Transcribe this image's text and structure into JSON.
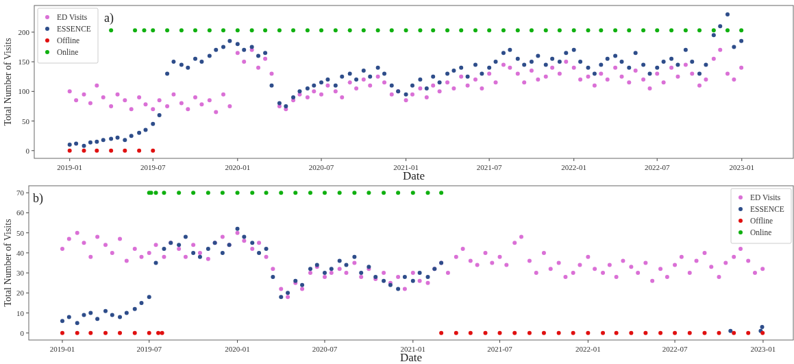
{
  "chart_data": [
    {
      "type": "scatter",
      "annotations": [
        "a)"
      ],
      "xlabel": "Date",
      "ylabel": "Total Number of Visits",
      "legend": "top left",
      "marker": "circle",
      "xlim": [
        "2018-10-16",
        "2023-04-23"
      ],
      "xticks": [
        "2019-01",
        "2019-07",
        "2020-01",
        "2020-07",
        "2021-01",
        "2021-07",
        "2022-01",
        "2022-07",
        "2023-01"
      ],
      "ylim": [
        -13,
        245
      ],
      "yticks": [
        0,
        50,
        100,
        150,
        200
      ],
      "x": [
        "2019-01-01",
        "2019-01-15",
        "2019-02-01",
        "2019-02-15",
        "2019-03-01",
        "2019-03-15",
        "2019-04-01",
        "2019-04-15",
        "2019-05-01",
        "2019-05-15",
        "2019-06-01",
        "2019-06-15",
        "2019-07-01",
        "2019-07-15",
        "2019-08-01",
        "2019-08-15",
        "2019-09-01",
        "2019-09-15",
        "2019-10-01",
        "2019-10-15",
        "2019-11-01",
        "2019-11-15",
        "2019-12-01",
        "2019-12-15",
        "2020-01-01",
        "2020-01-15",
        "2020-02-01",
        "2020-02-15",
        "2020-03-01",
        "2020-03-15",
        "2020-04-01",
        "2020-04-15",
        "2020-05-01",
        "2020-05-15",
        "2020-06-01",
        "2020-06-15",
        "2020-07-01",
        "2020-07-15",
        "2020-08-01",
        "2020-08-15",
        "2020-09-01",
        "2020-09-15",
        "2020-10-01",
        "2020-10-15",
        "2020-11-01",
        "2020-11-15",
        "2020-12-01",
        "2020-12-15",
        "2021-01-01",
        "2021-01-15",
        "2021-02-01",
        "2021-02-15",
        "2021-03-01",
        "2021-03-15",
        "2021-04-01",
        "2021-04-15",
        "2021-05-01",
        "2021-05-15",
        "2021-06-01",
        "2021-06-15",
        "2021-07-01",
        "2021-07-15",
        "2021-08-01",
        "2021-08-15",
        "2021-09-01",
        "2021-09-15",
        "2021-10-01",
        "2021-10-15",
        "2021-11-01",
        "2021-11-15",
        "2021-12-01",
        "2021-12-15",
        "2022-01-01",
        "2022-01-15",
        "2022-02-01",
        "2022-02-15",
        "2022-03-01",
        "2022-03-15",
        "2022-04-01",
        "2022-04-15",
        "2022-05-01",
        "2022-05-15",
        "2022-06-01",
        "2022-06-15",
        "2022-07-01",
        "2022-07-15",
        "2022-08-01",
        "2022-08-15",
        "2022-09-01",
        "2022-09-15",
        "2022-10-01",
        "2022-10-15",
        "2022-11-01",
        "2022-11-15",
        "2022-12-01",
        "2022-12-15",
        "2022-12-31"
      ],
      "series": [
        {
          "name": "ED Visits",
          "color": "#da70d6",
          "values": [
            100,
            85,
            95,
            80,
            110,
            90,
            75,
            95,
            85,
            70,
            90,
            78,
            70,
            85,
            75,
            95,
            80,
            70,
            90,
            78,
            85,
            65,
            95,
            75,
            165,
            150,
            170,
            140,
            155,
            130,
            75,
            70,
            85,
            95,
            90,
            100,
            95,
            110,
            100,
            90,
            115,
            105,
            120,
            110,
            125,
            115,
            95,
            100,
            85,
            95,
            105,
            90,
            110,
            100,
            115,
            105,
            125,
            110,
            120,
            105,
            130,
            115,
            145,
            140,
            130,
            115,
            135,
            120,
            125,
            140,
            130,
            150,
            140,
            120,
            125,
            110,
            130,
            120,
            140,
            125,
            115,
            135,
            120,
            105,
            130,
            115,
            140,
            125,
            145,
            130,
            110,
            120,
            155,
            170,
            130,
            120,
            140
          ]
        },
        {
          "name": "ESSENCE",
          "color": "#2e4d8a",
          "values": [
            10,
            12,
            8,
            14,
            15,
            18,
            20,
            22,
            18,
            25,
            30,
            35,
            45,
            60,
            130,
            150,
            145,
            140,
            155,
            150,
            160,
            170,
            175,
            185,
            180,
            170,
            175,
            160,
            165,
            110,
            80,
            75,
            90,
            100,
            105,
            110,
            115,
            120,
            110,
            125,
            130,
            120,
            135,
            125,
            140,
            130,
            110,
            100,
            95,
            110,
            120,
            105,
            125,
            115,
            130,
            135,
            140,
            125,
            145,
            130,
            140,
            150,
            165,
            170,
            155,
            145,
            150,
            160,
            145,
            155,
            150,
            165,
            170,
            150,
            140,
            130,
            145,
            155,
            160,
            150,
            140,
            165,
            145,
            130,
            140,
            150,
            155,
            145,
            170,
            150,
            130,
            145,
            195,
            210,
            230,
            175,
            185
          ]
        },
        {
          "name": "Offline",
          "color": "#e01010",
          "x": [
            "2019-01-01",
            "2019-02-01",
            "2019-03-01",
            "2019-04-01",
            "2019-05-01",
            "2019-06-01",
            "2019-07-01"
          ],
          "values": [
            0,
            0,
            0,
            0,
            0,
            0,
            0
          ]
        },
        {
          "name": "Online",
          "color": "#10b010",
          "x": [
            "2019-04-01",
            "2019-05-23",
            "2019-06-12",
            "2019-07-01",
            "2019-08-01",
            "2019-09-01",
            "2019-10-01",
            "2019-11-01",
            "2019-12-01",
            "2020-01-01",
            "2020-02-01",
            "2020-03-01",
            "2020-04-01",
            "2020-05-01",
            "2020-06-01",
            "2020-07-01",
            "2020-08-01",
            "2020-09-01",
            "2020-10-01",
            "2020-11-01",
            "2020-12-01",
            "2021-01-01",
            "2021-02-01",
            "2021-03-01",
            "2021-04-01",
            "2021-05-01",
            "2021-06-01",
            "2021-07-01",
            "2021-08-01",
            "2021-09-01",
            "2021-10-01",
            "2021-11-01",
            "2021-12-01",
            "2022-01-01",
            "2022-02-01",
            "2022-03-01",
            "2022-04-01",
            "2022-05-01",
            "2022-06-01",
            "2022-07-01",
            "2022-08-01",
            "2022-09-01",
            "2022-10-01",
            "2022-11-01",
            "2022-12-01",
            "2022-12-31"
          ],
          "values": [
            203,
            203,
            203,
            203,
            203,
            203,
            203,
            203,
            203,
            203,
            203,
            203,
            203,
            203,
            203,
            203,
            203,
            203,
            203,
            203,
            203,
            203,
            203,
            203,
            203,
            203,
            203,
            203,
            203,
            203,
            203,
            203,
            203,
            203,
            203,
            203,
            203,
            203,
            203,
            203,
            203,
            203,
            203,
            203,
            203,
            203
          ]
        }
      ]
    },
    {
      "type": "scatter",
      "annotations": [
        "b)"
      ],
      "xlabel": "Date",
      "ylabel": "Total Number of Visits",
      "legend": "top right",
      "marker": "circle",
      "xlim": [
        "2018-10-23",
        "2023-03-05"
      ],
      "xticks": [
        "2019-01",
        "2019-07",
        "2020-01",
        "2020-07",
        "2021-01",
        "2021-07",
        "2022-01",
        "2022-07",
        "2023-01"
      ],
      "ylim": [
        -3.5,
        73.5
      ],
      "yticks": [
        0,
        10,
        20,
        30,
        40,
        50,
        60,
        70
      ],
      "x": [
        "2019-01-01",
        "2019-01-15",
        "2019-02-01",
        "2019-02-15",
        "2019-03-01",
        "2019-03-15",
        "2019-04-01",
        "2019-04-15",
        "2019-05-01",
        "2019-05-15",
        "2019-06-01",
        "2019-06-15",
        "2019-07-01",
        "2019-07-15",
        "2019-08-01",
        "2019-08-15",
        "2019-09-01",
        "2019-09-15",
        "2019-10-01",
        "2019-10-15",
        "2019-11-01",
        "2019-11-15",
        "2019-12-01",
        "2019-12-15",
        "2020-01-01",
        "2020-01-15",
        "2020-02-01",
        "2020-02-15",
        "2020-03-01",
        "2020-03-15",
        "2020-04-01",
        "2020-04-15",
        "2020-05-01",
        "2020-05-15",
        "2020-06-01",
        "2020-06-15",
        "2020-07-01",
        "2020-07-15",
        "2020-08-01",
        "2020-08-15",
        "2020-09-01",
        "2020-09-15",
        "2020-10-01",
        "2020-10-15",
        "2020-11-01",
        "2020-11-15",
        "2020-12-01",
        "2020-12-15",
        "2021-01-01",
        "2021-01-15",
        "2021-02-01",
        "2021-02-15",
        "2021-03-01",
        "2021-03-15",
        "2021-04-01",
        "2021-04-15",
        "2021-05-01",
        "2021-05-15",
        "2021-06-01",
        "2021-06-15",
        "2021-07-01",
        "2021-07-15",
        "2021-08-01",
        "2021-08-15",
        "2021-09-01",
        "2021-09-15",
        "2021-10-01",
        "2021-10-15",
        "2021-11-01",
        "2021-11-15",
        "2021-12-01",
        "2021-12-15",
        "2022-01-01",
        "2022-01-15",
        "2022-02-01",
        "2022-02-15",
        "2022-03-01",
        "2022-03-15",
        "2022-04-01",
        "2022-04-15",
        "2022-05-01",
        "2022-05-15",
        "2022-06-01",
        "2022-06-15",
        "2022-07-01",
        "2022-07-15",
        "2022-08-01",
        "2022-08-15",
        "2022-09-01",
        "2022-09-15",
        "2022-10-01",
        "2022-10-15",
        "2022-11-01",
        "2022-11-15",
        "2022-12-01",
        "2022-12-15",
        "2022-12-31"
      ],
      "series": [
        {
          "name": "ED Visits",
          "color": "#da70d6",
          "values": [
            42,
            47,
            50,
            45,
            38,
            48,
            44,
            40,
            47,
            36,
            42,
            38,
            40,
            44,
            38,
            45,
            42,
            38,
            44,
            40,
            37,
            45,
            48,
            44,
            50,
            46,
            42,
            45,
            38,
            32,
            22,
            18,
            25,
            22,
            30,
            33,
            28,
            30,
            32,
            30,
            35,
            28,
            32,
            27,
            30,
            25,
            28,
            22,
            30,
            26,
            25,
            32,
            35,
            30,
            38,
            42,
            36,
            34,
            40,
            35,
            38,
            34,
            45,
            48,
            36,
            30,
            40,
            32,
            35,
            28,
            30,
            34,
            38,
            32,
            30,
            34,
            28,
            36,
            33,
            30,
            35,
            26,
            32,
            28,
            34,
            38,
            30,
            36,
            40,
            33,
            28,
            35,
            38,
            42,
            36,
            30,
            32
          ]
        },
        {
          "name": "ESSENCE",
          "color": "#2e4d8a",
          "x": [
            "2019-01-01",
            "2019-01-15",
            "2019-02-01",
            "2019-02-15",
            "2019-03-01",
            "2019-03-15",
            "2019-04-01",
            "2019-04-15",
            "2019-05-01",
            "2019-05-15",
            "2019-06-01",
            "2019-06-15",
            "2019-07-01",
            "2019-07-15",
            "2019-08-01",
            "2019-08-15",
            "2019-09-01",
            "2019-09-15",
            "2019-10-01",
            "2019-10-15",
            "2019-11-01",
            "2019-11-15",
            "2019-12-01",
            "2019-12-15",
            "2020-01-01",
            "2020-01-15",
            "2020-02-01",
            "2020-02-15",
            "2020-03-01",
            "2020-03-15",
            "2020-04-01",
            "2020-04-15",
            "2020-05-01",
            "2020-05-15",
            "2020-06-01",
            "2020-06-15",
            "2020-07-01",
            "2020-07-15",
            "2020-08-01",
            "2020-08-15",
            "2020-09-01",
            "2020-09-15",
            "2020-10-01",
            "2020-10-15",
            "2020-11-01",
            "2020-11-15",
            "2020-12-01",
            "2020-12-15",
            "2021-01-01",
            "2021-01-15",
            "2021-02-01",
            "2021-02-15",
            "2021-03-01",
            "2022-10-25",
            "2022-12-27",
            "2022-12-30"
          ],
          "values": [
            6,
            8,
            5,
            9,
            10,
            7,
            11,
            9,
            8,
            10,
            12,
            15,
            18,
            35,
            42,
            45,
            44,
            48,
            40,
            38,
            42,
            45,
            40,
            44,
            52,
            48,
            45,
            40,
            42,
            28,
            18,
            20,
            26,
            24,
            32,
            34,
            30,
            32,
            36,
            34,
            38,
            30,
            33,
            28,
            26,
            24,
            22,
            28,
            26,
            30,
            28,
            32,
            35,
            1,
            1,
            3
          ]
        },
        {
          "name": "Offline",
          "color": "#e01010",
          "x": [
            "2019-01-01",
            "2019-02-01",
            "2019-03-01",
            "2019-04-01",
            "2019-05-01",
            "2019-06-01",
            "2019-07-01",
            "2019-07-20",
            "2019-07-28",
            "2021-03-01",
            "2021-04-01",
            "2021-05-01",
            "2021-06-01",
            "2021-07-01",
            "2021-08-01",
            "2021-09-01",
            "2021-10-01",
            "2021-11-01",
            "2021-12-01",
            "2022-01-01",
            "2022-02-01",
            "2022-03-01",
            "2022-04-01",
            "2022-05-01",
            "2022-06-01",
            "2022-07-01",
            "2022-08-01",
            "2022-09-01",
            "2022-10-01",
            "2022-11-01",
            "2022-12-01",
            "2022-12-31"
          ],
          "values": [
            0,
            0,
            0,
            0,
            0,
            0,
            0,
            0,
            0,
            0,
            0,
            0,
            0,
            0,
            0,
            0,
            0,
            0,
            0,
            0,
            0,
            0,
            0,
            0,
            0,
            0,
            0,
            0,
            0,
            0,
            0,
            0
          ]
        },
        {
          "name": "Online",
          "color": "#10b010",
          "x": [
            "2019-07-01",
            "2019-07-05",
            "2019-07-15",
            "2019-08-01",
            "2019-09-01",
            "2019-10-01",
            "2019-11-01",
            "2019-12-01",
            "2020-01-01",
            "2020-02-01",
            "2020-03-01",
            "2020-04-01",
            "2020-05-01",
            "2020-06-01",
            "2020-07-01",
            "2020-08-01",
            "2020-09-01",
            "2020-10-01",
            "2020-11-01",
            "2020-12-01",
            "2021-01-01",
            "2021-02-01",
            "2021-03-01"
          ],
          "values": [
            70,
            70,
            70,
            70,
            70,
            70,
            70,
            70,
            70,
            70,
            70,
            70,
            70,
            70,
            70,
            70,
            70,
            70,
            70,
            70,
            70,
            70,
            70
          ]
        }
      ]
    }
  ]
}
